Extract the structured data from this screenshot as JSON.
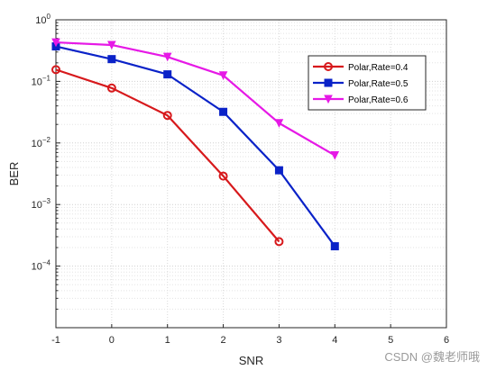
{
  "chart_data": {
    "type": "line",
    "xlabel": "SNR",
    "ylabel": "BER",
    "xlim": [
      -1,
      6
    ],
    "ylim": [
      1e-05,
      1
    ],
    "yscale": "log",
    "x_ticks": [
      -1,
      0,
      1,
      2,
      3,
      4,
      5,
      6
    ],
    "y_tick_exponents": [
      0,
      -1,
      -2,
      -3,
      -4
    ],
    "grid": true,
    "minor_grid": true,
    "legend_position": "top-right",
    "series": [
      {
        "name": "Polar,Rate=0.4",
        "color": "#d7191c",
        "marker": "circle",
        "x": [
          -1,
          0,
          1,
          2,
          3
        ],
        "y": [
          0.155,
          0.078,
          0.028,
          0.0029,
          0.00025
        ]
      },
      {
        "name": "Polar,Rate=0.5",
        "color": "#0a22c8",
        "marker": "square",
        "x": [
          -1,
          0,
          1,
          2,
          3,
          4
        ],
        "y": [
          0.37,
          0.23,
          0.13,
          0.032,
          0.0036,
          0.00021
        ]
      },
      {
        "name": "Polar,Rate=0.6",
        "color": "#e619e6",
        "marker": "triangle-down",
        "x": [
          -1,
          0,
          1,
          2,
          3,
          4
        ],
        "y": [
          0.43,
          0.39,
          0.25,
          0.125,
          0.021,
          0.0063
        ]
      }
    ]
  },
  "watermark": "CSDN @魏老师哦"
}
